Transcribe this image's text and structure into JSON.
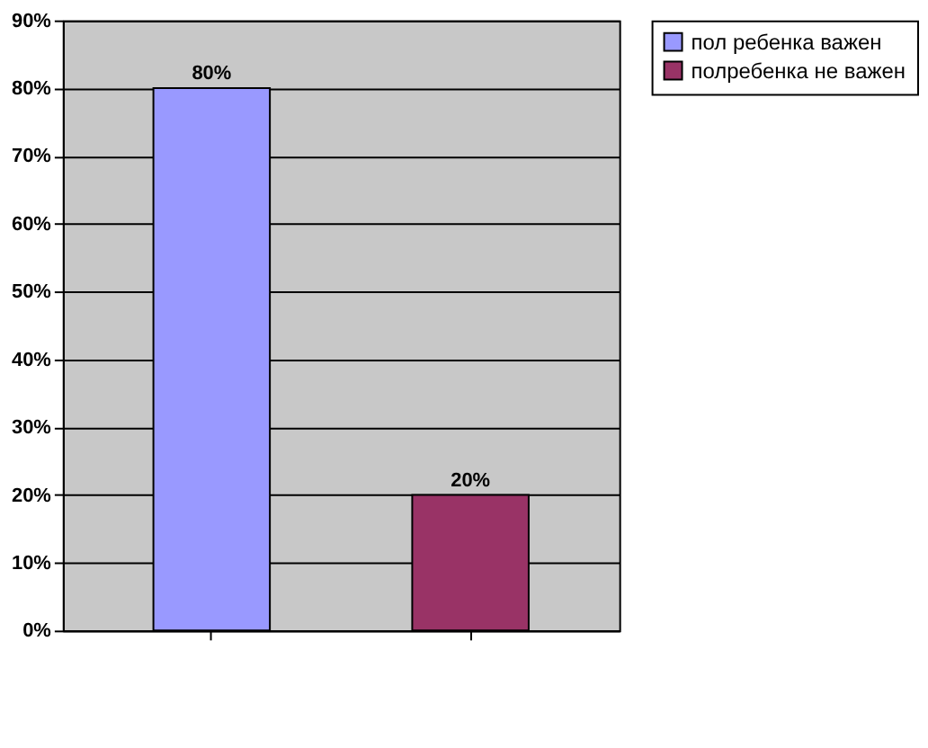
{
  "chart_data": {
    "type": "bar",
    "categories": [
      null,
      null
    ],
    "series": [
      {
        "name": "пол ребенка важен",
        "color": "#9999ff",
        "values": [
          80,
          null
        ],
        "value_labels": [
          "80%",
          null
        ]
      },
      {
        "name": "полребенка не важен",
        "color": "#993366",
        "values": [
          null,
          20
        ],
        "value_labels": [
          null,
          "20%"
        ]
      }
    ],
    "ylim": [
      0,
      90
    ],
    "yticks": [
      {
        "value": 0,
        "label": "0%"
      },
      {
        "value": 10,
        "label": "10%"
      },
      {
        "value": 20,
        "label": "20%"
      },
      {
        "value": 30,
        "label": "30%"
      },
      {
        "value": 40,
        "label": "40%"
      },
      {
        "value": 50,
        "label": "50%"
      },
      {
        "value": 60,
        "label": "60%"
      },
      {
        "value": 70,
        "label": "70%"
      },
      {
        "value": 80,
        "label": "80%"
      },
      {
        "value": 90,
        "label": "90%"
      }
    ],
    "grid": "y",
    "legend": "right"
  }
}
